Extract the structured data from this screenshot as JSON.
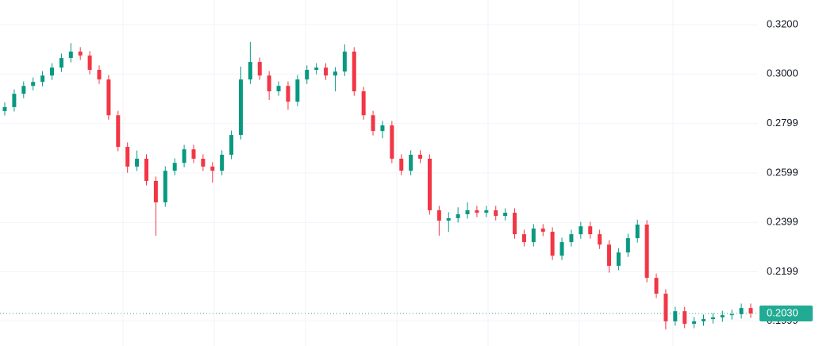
{
  "chart_data": {
    "type": "candlestick",
    "open": [
      0.285,
      0.2866,
      0.292,
      0.2952,
      0.2968,
      0.2994,
      0.3026,
      0.3065,
      0.3091,
      0.3075,
      0.3017,
      0.2978,
      0.2833,
      0.2705,
      0.2625,
      0.2657,
      0.2567,
      0.248,
      0.2608,
      0.264,
      0.2695,
      0.2657,
      0.2625,
      0.2608,
      0.2673,
      0.2753,
      0.2978,
      0.3049,
      0.2994,
      0.293,
      0.2952,
      0.2888,
      0.2978,
      0.3017,
      0.3026,
      0.2994,
      0.301,
      0.3091,
      0.293,
      0.2833,
      0.2769,
      0.2792,
      0.2657,
      0.2608,
      0.2673,
      0.2657,
      0.2448,
      0.2406,
      0.2416,
      0.2432,
      0.2448,
      0.2438,
      0.2448,
      0.2425,
      0.2438,
      0.2351,
      0.2319,
      0.2374,
      0.2361,
      0.2264,
      0.2319,
      0.2351,
      0.2383,
      0.2351,
      0.2309,
      0.2223,
      0.2277,
      0.2335,
      0.239,
      0.2174,
      0.211,
      0.1998,
      0.2039,
      0.1988,
      0.1998,
      0.2007,
      0.2014,
      0.2023,
      0.2027,
      0.2052
    ],
    "high": [
      0.2885,
      0.2938,
      0.297,
      0.2986,
      0.3012,
      0.3044,
      0.3083,
      0.3125,
      0.3109,
      0.3093,
      0.3035,
      0.2996,
      0.2851,
      0.2723,
      0.269,
      0.2675,
      0.2585,
      0.2626,
      0.2658,
      0.2713,
      0.2713,
      0.2675,
      0.2643,
      0.2691,
      0.2771,
      0.303,
      0.313,
      0.3067,
      0.3012,
      0.297,
      0.297,
      0.2996,
      0.3035,
      0.3044,
      0.3044,
      0.3028,
      0.312,
      0.3109,
      0.2948,
      0.2851,
      0.281,
      0.281,
      0.2675,
      0.2691,
      0.2691,
      0.2675,
      0.2466,
      0.244,
      0.246,
      0.248,
      0.2466,
      0.2466,
      0.2466,
      0.2456,
      0.2456,
      0.2369,
      0.2392,
      0.2392,
      0.2379,
      0.2337,
      0.2369,
      0.2401,
      0.2401,
      0.2369,
      0.2327,
      0.2295,
      0.2353,
      0.241,
      0.2408,
      0.2192,
      0.2128,
      0.2057,
      0.2057,
      0.2016,
      0.2025,
      0.2032,
      0.2041,
      0.2045,
      0.207,
      0.207
    ],
    "low": [
      0.2832,
      0.2848,
      0.2902,
      0.2934,
      0.295,
      0.2976,
      0.3008,
      0.3047,
      0.3057,
      0.2999,
      0.296,
      0.2815,
      0.2687,
      0.26,
      0.2607,
      0.2549,
      0.2345,
      0.2462,
      0.259,
      0.2622,
      0.2639,
      0.2607,
      0.256,
      0.259,
      0.2655,
      0.2735,
      0.296,
      0.2976,
      0.2895,
      0.2912,
      0.2855,
      0.287,
      0.296,
      0.2999,
      0.2976,
      0.293,
      0.2992,
      0.2912,
      0.2815,
      0.2751,
      0.274,
      0.2639,
      0.259,
      0.259,
      0.2639,
      0.243,
      0.2345,
      0.236,
      0.2398,
      0.2414,
      0.242,
      0.242,
      0.2407,
      0.2407,
      0.2333,
      0.2301,
      0.2301,
      0.2343,
      0.2246,
      0.2246,
      0.2301,
      0.2333,
      0.2333,
      0.2291,
      0.2195,
      0.2205,
      0.2259,
      0.2317,
      0.2156,
      0.2092,
      0.1965,
      0.198,
      0.197,
      0.197,
      0.198,
      0.1989,
      0.1996,
      0.2005,
      0.2009,
      0.2012
    ],
    "close": [
      0.2866,
      0.292,
      0.2952,
      0.2968,
      0.2994,
      0.3026,
      0.3065,
      0.3091,
      0.3075,
      0.3017,
      0.2978,
      0.2833,
      0.2705,
      0.2625,
      0.2657,
      0.2567,
      0.248,
      0.2608,
      0.264,
      0.2695,
      0.2657,
      0.2625,
      0.2608,
      0.2673,
      0.2753,
      0.2978,
      0.3049,
      0.2994,
      0.293,
      0.2952,
      0.2888,
      0.2978,
      0.3017,
      0.3026,
      0.2994,
      0.301,
      0.3091,
      0.293,
      0.2833,
      0.2769,
      0.2792,
      0.2657,
      0.2608,
      0.2673,
      0.2657,
      0.2448,
      0.2406,
      0.2416,
      0.2432,
      0.2448,
      0.2438,
      0.2448,
      0.2425,
      0.2438,
      0.2351,
      0.2319,
      0.2374,
      0.2361,
      0.2264,
      0.2319,
      0.2351,
      0.2383,
      0.2351,
      0.2309,
      0.2223,
      0.2277,
      0.2335,
      0.239,
      0.2174,
      0.211,
      0.1998,
      0.2039,
      0.1988,
      0.1998,
      0.2007,
      0.2014,
      0.2023,
      0.2027,
      0.2052,
      0.203
    ],
    "up_color": "#089981",
    "down_color": "#f23645",
    "ylim": [
      0.1898,
      0.33
    ],
    "yticks": [
      {
        "value": 0.32,
        "label": "0.3200"
      },
      {
        "value": 0.3,
        "label": "0.3000"
      },
      0.2799,
      0.2599,
      0.2399,
      0.2199,
      0.1999
    ],
    "grid": true,
    "last_price": {
      "value": 0.203,
      "label": "0.2030",
      "color": "#22ab94"
    }
  }
}
